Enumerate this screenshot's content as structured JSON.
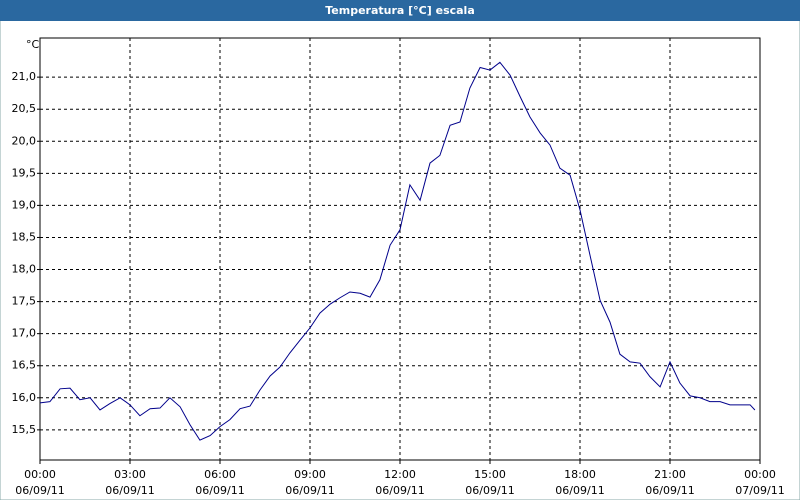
{
  "chart_data": {
    "type": "line",
    "title": "Temperatura [°C] escala",
    "y_label": "°C",
    "x": [
      0,
      0.33,
      0.67,
      1,
      1.33,
      1.67,
      2,
      2.33,
      2.67,
      3,
      3.33,
      3.67,
      4,
      4.33,
      4.67,
      5,
      5.33,
      5.67,
      6,
      6.33,
      6.67,
      7,
      7.33,
      7.67,
      8,
      8.33,
      8.67,
      9,
      9.33,
      9.67,
      10,
      10.33,
      10.67,
      11,
      11.33,
      11.67,
      12,
      12.33,
      12.67,
      13,
      13.33,
      13.67,
      14,
      14.33,
      14.67,
      15,
      15.33,
      15.67,
      16,
      16.33,
      16.67,
      17,
      17.33,
      17.67,
      18,
      18.33,
      18.67,
      19,
      19.33,
      19.67,
      20,
      20.33,
      20.67,
      21,
      21.33,
      21.67,
      22,
      22.33,
      22.67,
      23,
      23.33,
      23.67,
      23.83
    ],
    "series": [
      {
        "name": "Temperatura",
        "color": "#00008b",
        "values": [
          15.92,
          15.94,
          16.14,
          16.15,
          15.97,
          16.0,
          15.81,
          15.91,
          16.0,
          15.89,
          15.72,
          15.83,
          15.84,
          16.0,
          15.86,
          15.58,
          15.34,
          15.41,
          15.55,
          15.66,
          15.83,
          15.87,
          16.12,
          16.34,
          16.48,
          16.7,
          16.9,
          17.09,
          17.32,
          17.46,
          17.56,
          17.65,
          17.63,
          17.57,
          17.84,
          18.38,
          18.62,
          19.32,
          19.08,
          19.66,
          19.78,
          20.25,
          20.3,
          20.83,
          21.15,
          21.11,
          21.23,
          21.03,
          20.7,
          20.38,
          20.13,
          19.94,
          19.58,
          19.47,
          18.93,
          18.23,
          17.52,
          17.18,
          16.68,
          16.56,
          16.54,
          16.33,
          16.17,
          16.56,
          16.23,
          16.03,
          16.0,
          15.94,
          15.94,
          15.89,
          15.89,
          15.89,
          15.81
        ]
      }
    ],
    "xlim": [
      0,
      24
    ],
    "xticks": [
      {
        "value": 0,
        "label": [
          "00:00",
          "06/09/11"
        ]
      },
      {
        "value": 3,
        "label": [
          "03:00",
          "06/09/11"
        ]
      },
      {
        "value": 6,
        "label": [
          "06:00",
          "06/09/11"
        ]
      },
      {
        "value": 9,
        "label": [
          "09:00",
          "06/09/11"
        ]
      },
      {
        "value": 12,
        "label": [
          "12:00",
          "06/09/11"
        ]
      },
      {
        "value": 15,
        "label": [
          "15:00",
          "06/09/11"
        ]
      },
      {
        "value": 18,
        "label": [
          "18:00",
          "06/09/11"
        ]
      },
      {
        "value": 21,
        "label": [
          "21:00",
          "06/09/11"
        ]
      },
      {
        "value": 24,
        "label": [
          "00:00",
          "07/09/11"
        ]
      }
    ],
    "ylim": [
      15.03,
      21.61
    ],
    "yticks": [
      {
        "value": 15.5,
        "label": "15,5"
      },
      {
        "value": 16,
        "label": "16,0"
      },
      {
        "value": 16.5,
        "label": "16,5"
      },
      {
        "value": 17,
        "label": "17,0"
      },
      {
        "value": 17.5,
        "label": "17,5"
      },
      {
        "value": 18,
        "label": "18,0"
      },
      {
        "value": 18.5,
        "label": "18,5"
      },
      {
        "value": 19,
        "label": "19,0"
      },
      {
        "value": 19.5,
        "label": "19,5"
      },
      {
        "value": 20,
        "label": "20,0"
      },
      {
        "value": 20.5,
        "label": "20,5"
      },
      {
        "value": 21,
        "label": "21,0"
      }
    ],
    "grid": true
  }
}
